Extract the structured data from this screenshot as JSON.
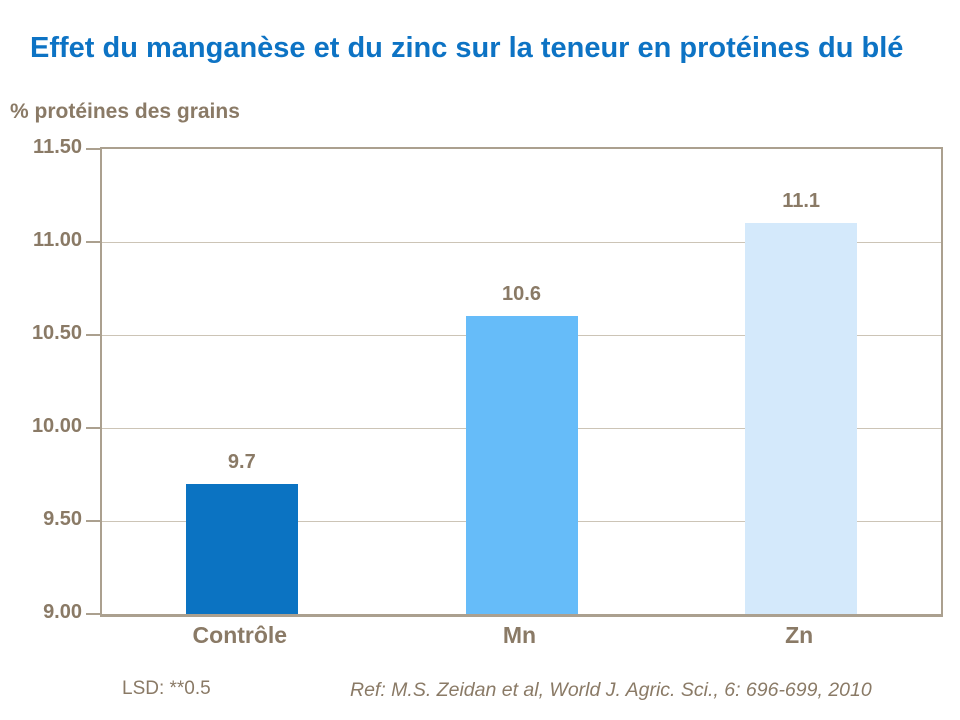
{
  "footer": {
    "lsd": "LSD: **0.5",
    "reference": "Ref: M.S. Zeidan et al, World J. Agric. Sci., 6: 696-699, 2010"
  },
  "colors": {
    "title_blue": "#0d73c4",
    "text_brown": "#8a7a66",
    "axis_line": "#aba08f",
    "gridline": "#ccc4b6",
    "bar_controle": "#0b73c2",
    "bar_mn": "#66bcf9",
    "bar_zn": "#d4e9fb"
  },
  "chart_data": {
    "type": "bar",
    "title": "Effet du manganèse et du zinc sur la teneur en protéines du blé",
    "ylabel": "% protéines des grains",
    "xlabel": "",
    "categories": [
      "Contrôle",
      "Mn",
      "Zn"
    ],
    "values": [
      9.7,
      10.6,
      11.1
    ],
    "data_labels": [
      "9.7",
      "10.6",
      "11.1"
    ],
    "bar_colors": [
      "#0b73c2",
      "#66bcf9",
      "#d4e9fb"
    ],
    "ylim": [
      9.0,
      11.5
    ],
    "ytick_labels": [
      "9.00",
      "9.50",
      "10.00",
      "10.50",
      "11.00",
      "11.50"
    ],
    "grid": true,
    "legend_position": "none"
  }
}
